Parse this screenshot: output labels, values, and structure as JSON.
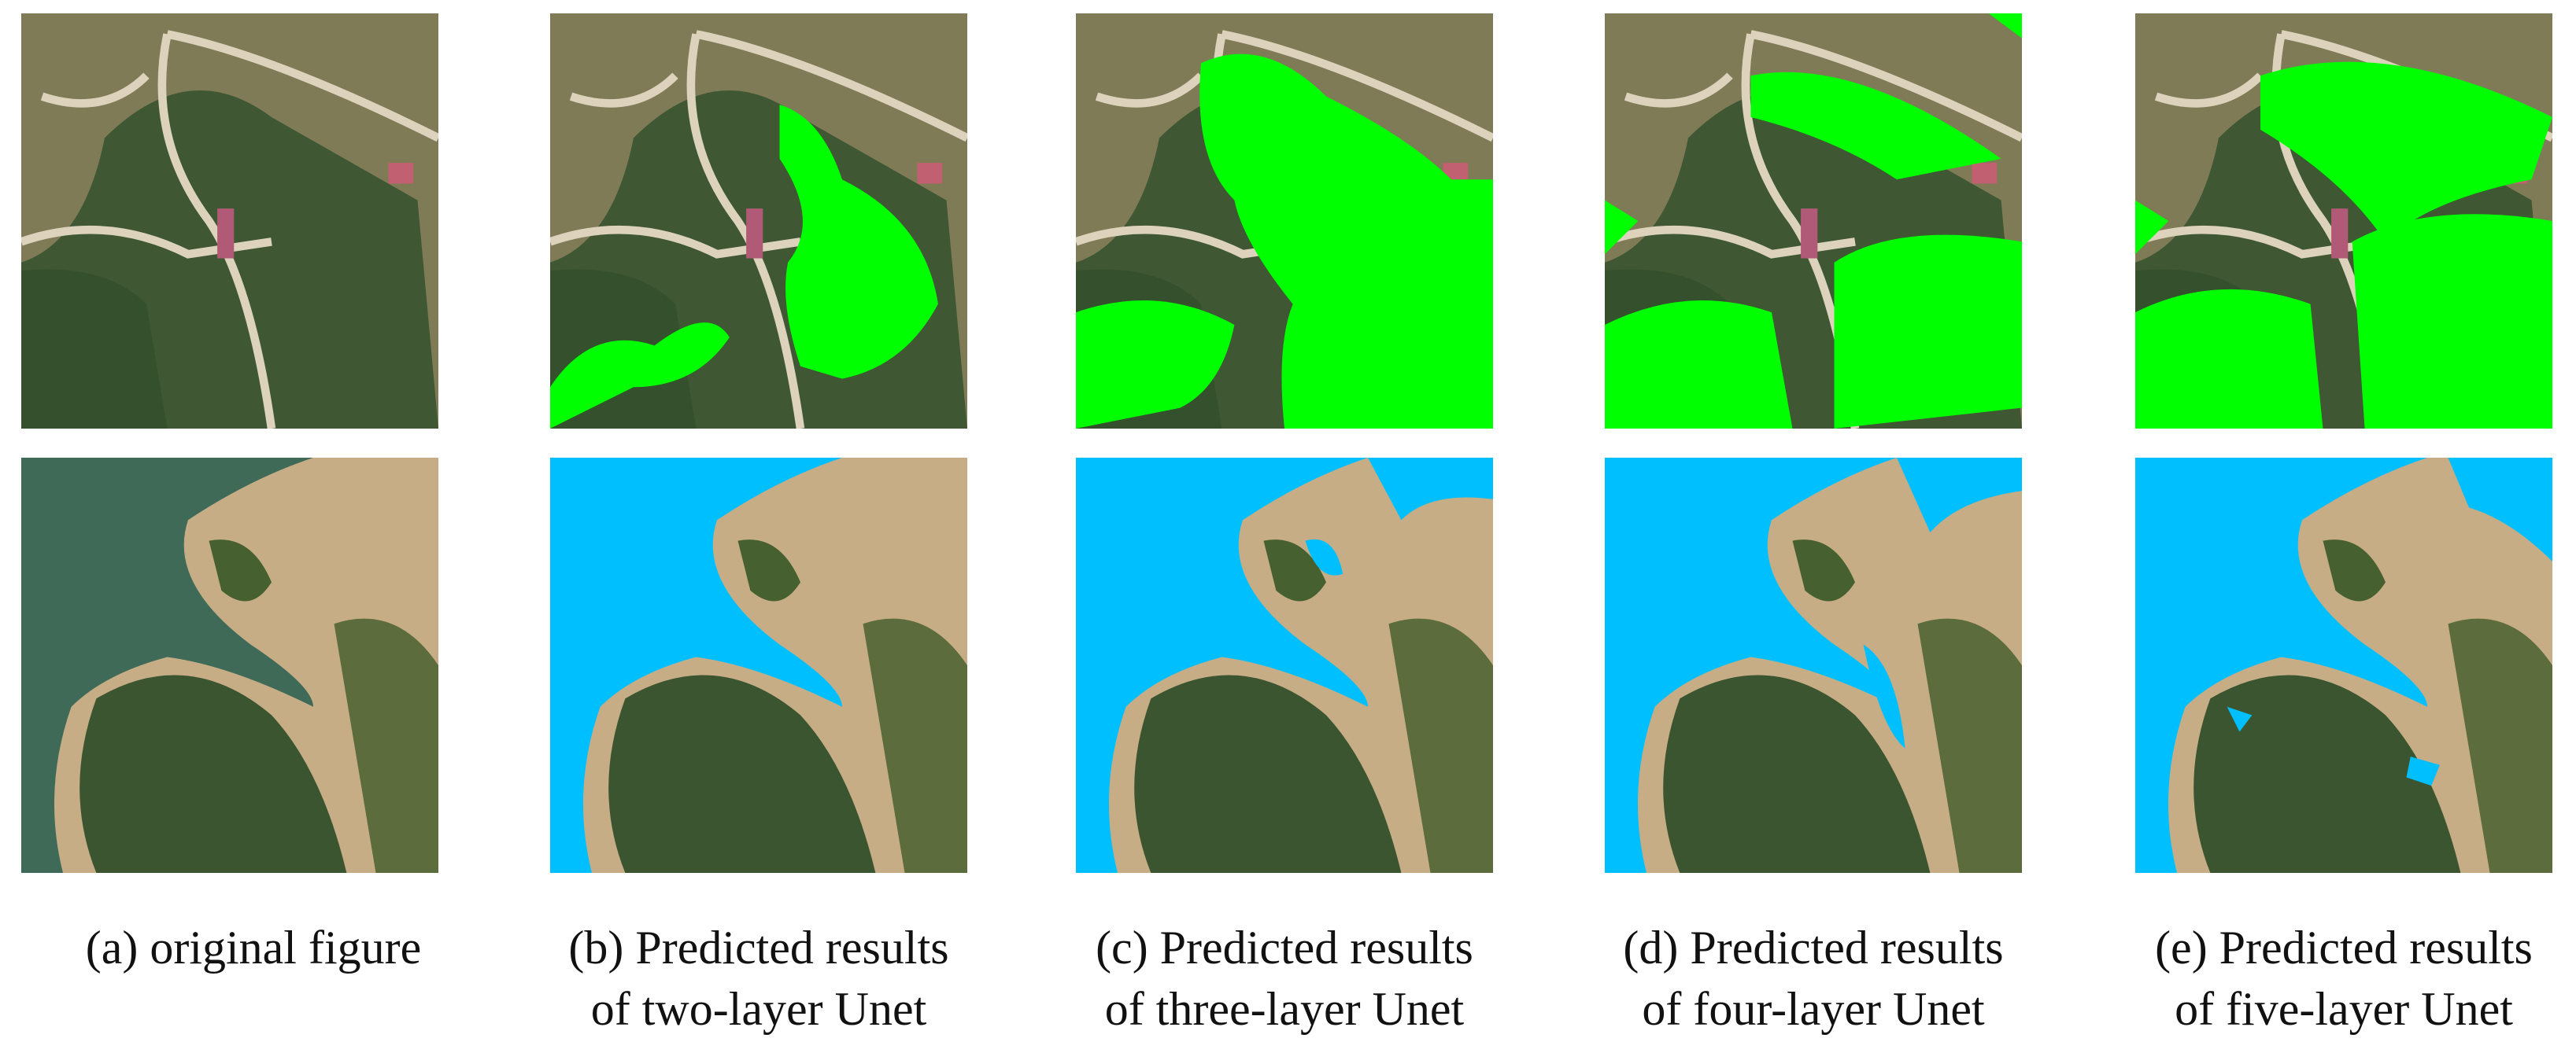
{
  "panels": [
    {
      "caption": [
        "(a) original figure"
      ]
    },
    {
      "caption": [
        "(b) Predicted results",
        "of  two-layer Unet"
      ]
    },
    {
      "caption": [
        "(c) Predicted results",
        "of  three-layer Unet"
      ]
    },
    {
      "caption": [
        "(d) Predicted results",
        "of  four-layer Unet"
      ]
    },
    {
      "caption": [
        "(e) Predicted results",
        "of  five-layer Unet"
      ]
    }
  ]
}
